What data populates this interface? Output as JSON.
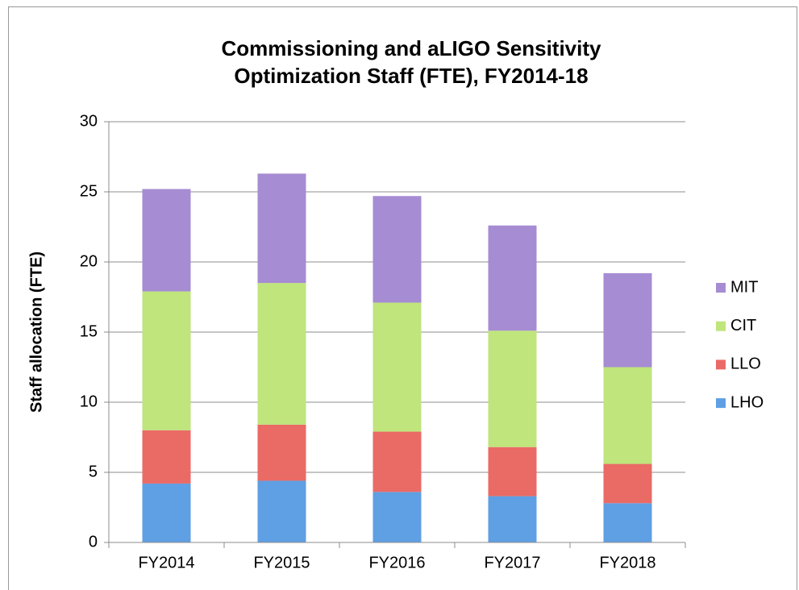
{
  "chart_data": {
    "type": "stacked_bar",
    "title": [
      "Commissioning and aLIGO Sensitivity",
      "Optimization Staff (FTE),  FY2014-18"
    ],
    "y_label": "Staff allocation (FTE)",
    "categories": [
      "FY2014",
      "FY2015",
      "FY2016",
      "FY2017",
      "FY2018"
    ],
    "series": [
      {
        "name": "LHO",
        "color": "#5f9fe3",
        "values": [
          4.2,
          4.4,
          3.6,
          3.3,
          2.8
        ]
      },
      {
        "name": "LLO",
        "color": "#ea6a65",
        "values": [
          3.8,
          4.0,
          4.3,
          3.5,
          2.8
        ]
      },
      {
        "name": "CIT",
        "color": "#bfe57c",
        "values": [
          9.9,
          10.1,
          9.2,
          8.3,
          6.9
        ]
      },
      {
        "name": "MIT",
        "color": "#a68cd3",
        "values": [
          7.3,
          7.8,
          7.6,
          7.5,
          6.7
        ]
      }
    ],
    "ylim": [
      0,
      30
    ],
    "yticks": [
      0,
      5,
      10,
      15,
      20,
      25,
      30
    ],
    "grid": true,
    "legend": "right"
  }
}
